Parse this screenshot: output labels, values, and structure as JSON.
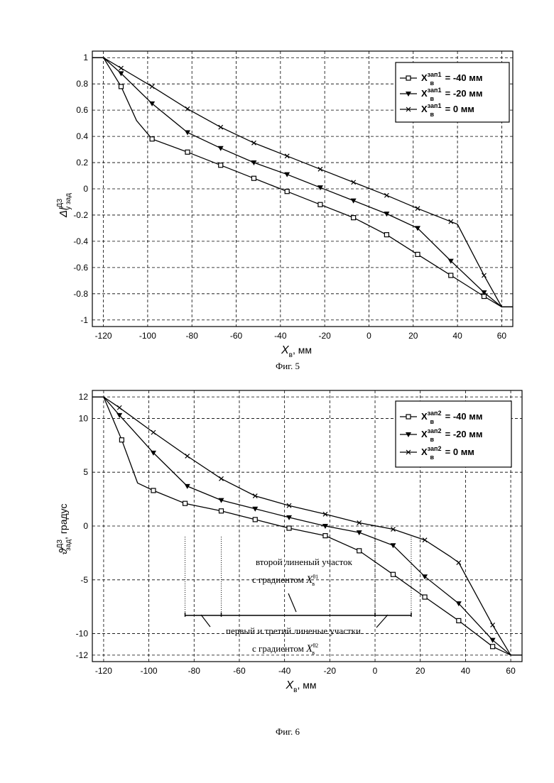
{
  "chart_data": [
    {
      "type": "line",
      "caption": "Фиг. 5",
      "xlabel": "X",
      "xlabel_sub": "в",
      "xlabel_unit": ", мм",
      "ylabel": "Δl",
      "ylabel_sup": "ДЗ",
      "ylabel_sub": "у зад",
      "xlim": [
        -125,
        65
      ],
      "ylim": [
        -1.05,
        1.05
      ],
      "xticks": [
        -120,
        -100,
        -80,
        -60,
        -40,
        -20,
        0,
        20,
        40,
        60
      ],
      "yticks": [
        -1,
        -0.8,
        -0.6,
        -0.4,
        -0.2,
        0,
        0.2,
        0.4,
        0.6,
        0.8,
        1
      ],
      "grid": true,
      "legend_position": "top-right",
      "series": [
        {
          "marker": "square",
          "name_main": "X",
          "name_sub": "в",
          "name_sup": "зап1",
          "name_tail": " = -40 мм",
          "x": [
            -125,
            -120,
            -112,
            -105,
            -98,
            -82,
            -67,
            -52,
            -37,
            -22,
            -7,
            8,
            22,
            37,
            52,
            60,
            65
          ],
          "y": [
            1,
            1,
            0.78,
            0.52,
            0.38,
            0.28,
            0.18,
            0.08,
            -0.02,
            -0.12,
            -0.22,
            -0.35,
            -0.5,
            -0.66,
            -0.82,
            -0.9,
            -0.9
          ],
          "marks": [
            0,
            0,
            1,
            0,
            1,
            1,
            1,
            1,
            1,
            1,
            1,
            1,
            1,
            1,
            1,
            0,
            0
          ]
        },
        {
          "marker": "triangle",
          "name_main": "X",
          "name_sub": "в",
          "name_sup": "зап1",
          "name_tail": " = -20 мм",
          "x": [
            -125,
            -120,
            -112,
            -98,
            -82,
            -67,
            -52,
            -37,
            -22,
            -7,
            8,
            22,
            37,
            52,
            60,
            65
          ],
          "y": [
            1,
            1,
            0.88,
            0.65,
            0.43,
            0.31,
            0.2,
            0.11,
            0.01,
            -0.09,
            -0.19,
            -0.3,
            -0.55,
            -0.79,
            -0.9,
            -0.9
          ],
          "marks": [
            0,
            0,
            1,
            1,
            1,
            1,
            1,
            1,
            1,
            1,
            1,
            1,
            1,
            1,
            0,
            0
          ]
        },
        {
          "marker": "x",
          "name_main": "X",
          "name_sub": "в",
          "name_sup": "зап1",
          "name_tail": " = 0 мм",
          "x": [
            -125,
            -120,
            -112,
            -98,
            -82,
            -67,
            -52,
            -37,
            -22,
            -7,
            8,
            22,
            37,
            40,
            52,
            60,
            65
          ],
          "y": [
            1,
            1,
            0.92,
            0.78,
            0.61,
            0.47,
            0.35,
            0.25,
            0.15,
            0.05,
            -0.05,
            -0.15,
            -0.25,
            -0.27,
            -0.66,
            -0.9,
            -0.9
          ],
          "marks": [
            0,
            0,
            1,
            1,
            1,
            1,
            1,
            1,
            1,
            1,
            1,
            1,
            1,
            0,
            1,
            0,
            0
          ]
        }
      ]
    },
    {
      "type": "line",
      "caption": "Фиг. 6",
      "xlabel": "X",
      "xlabel_sub": "в",
      "xlabel_unit": ", мм",
      "ylabel": "ϑ",
      "ylabel_sup": "ДЗ",
      "ylabel_sub": "зад",
      "ylabel_tail": ", градус",
      "xlim": [
        -125,
        65
      ],
      "ylim": [
        -12.6,
        12.6
      ],
      "xticks": [
        -120,
        -100,
        -80,
        -60,
        -40,
        -20,
        0,
        20,
        40,
        60
      ],
      "yticks": [
        -12,
        -10,
        -5,
        0,
        5,
        10,
        12
      ],
      "grid": true,
      "legend_position": "top-right",
      "annotations": {
        "inner_line1": "второй линеный участок",
        "inner_line2_prefix": "с градиентом ",
        "inner_var": "X",
        "inner_sub": "в",
        "inner_sup": "θ1",
        "outer_line1": "первый и третий линеные участки",
        "outer_line2_prefix": "с градиентом ",
        "outer_var": "X",
        "outer_sub": "в",
        "outer_sup": "θ2"
      },
      "series": [
        {
          "marker": "square",
          "name_main": "X",
          "name_sub": "в",
          "name_sup": "зап2",
          "name_tail": " = -40 мм",
          "x": [
            -125,
            -120,
            -112,
            -105,
            -98,
            -84,
            -68,
            -53,
            -38,
            -22,
            -7,
            8,
            22,
            37,
            52,
            60,
            65
          ],
          "y": [
            12,
            12,
            8,
            4,
            3.3,
            2.1,
            1.4,
            0.6,
            -0.2,
            -0.9,
            -2.3,
            -4.5,
            -6.6,
            -8.8,
            -11.2,
            -12,
            -12
          ],
          "marks": [
            0,
            0,
            1,
            0,
            1,
            1,
            1,
            1,
            1,
            1,
            1,
            1,
            1,
            1,
            1,
            0,
            0
          ]
        },
        {
          "marker": "triangle",
          "name_main": "X",
          "name_sub": "в",
          "name_sup": "зап2",
          "name_tail": " = -20 мм",
          "x": [
            -125,
            -120,
            -113,
            -98,
            -83,
            -68,
            -53,
            -38,
            -22,
            -7,
            8,
            22,
            37,
            52,
            60,
            65
          ],
          "y": [
            12,
            12,
            10.3,
            6.8,
            3.7,
            2.4,
            1.6,
            0.8,
            0,
            -0.6,
            -1.8,
            -4.7,
            -7.2,
            -10.6,
            -12,
            -12
          ],
          "marks": [
            0,
            0,
            1,
            1,
            1,
            1,
            1,
            1,
            1,
            1,
            1,
            1,
            1,
            1,
            0,
            0
          ]
        },
        {
          "marker": "x",
          "name_main": "X",
          "name_sub": "в",
          "name_sup": "зап2",
          "name_tail": " = 0 мм",
          "x": [
            -125,
            -120,
            -113,
            -98,
            -83,
            -68,
            -53,
            -38,
            -22,
            -7,
            8,
            22,
            33,
            37,
            52,
            60,
            65
          ],
          "y": [
            12,
            12,
            11,
            8.7,
            6.5,
            4.4,
            2.8,
            1.9,
            1.1,
            0.3,
            -0.3,
            -1.3,
            -2.8,
            -3.4,
            -9.2,
            -12,
            -12
          ],
          "marks": [
            0,
            0,
            1,
            1,
            1,
            1,
            1,
            1,
            1,
            1,
            1,
            1,
            0,
            1,
            1,
            0,
            0
          ]
        }
      ]
    }
  ]
}
